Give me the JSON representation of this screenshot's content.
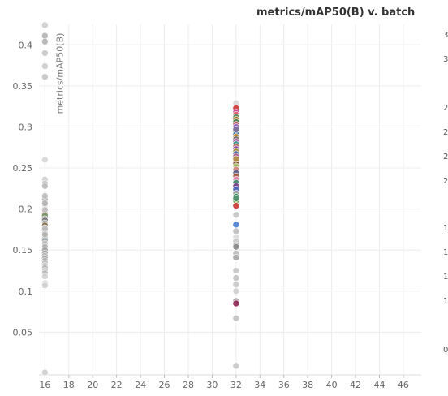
{
  "chart_data": {
    "type": "scatter",
    "title": "metrics/mAP50(B) v. batch",
    "ylabel": "metrics/mAP50(B)",
    "xlabel": "",
    "xlim": [
      15.5,
      47.5
    ],
    "ylim": [
      -0.002,
      0.425
    ],
    "xticks": [
      16,
      18,
      20,
      22,
      24,
      26,
      28,
      30,
      32,
      34,
      36,
      38,
      40,
      42,
      44,
      46
    ],
    "yticks": [
      0.05,
      0.1,
      0.15,
      0.2,
      0.25,
      0.3,
      0.35,
      0.4
    ],
    "ytick_labels": [
      "0.05",
      "0.1",
      "0.15",
      "0.2",
      "0.25",
      "0.3",
      "0.35",
      "0.4"
    ],
    "grid": true,
    "series": [
      {
        "x": [
          16,
          16,
          16,
          16,
          16,
          16,
          16,
          16,
          16,
          16,
          16,
          16,
          16,
          16,
          16,
          16,
          16,
          16,
          16,
          16,
          16,
          16,
          16,
          16,
          16,
          16,
          16,
          16,
          16,
          16,
          16,
          16,
          16,
          16,
          16,
          16,
          16,
          16,
          16,
          16,
          16,
          16,
          16,
          16,
          16,
          16,
          16,
          16
        ],
        "y": [
          0.424,
          0.411,
          0.404,
          0.374,
          0.361,
          0.26,
          0.236,
          0.231,
          0.228,
          0.214,
          0.212,
          0.205,
          0.2,
          0.196,
          0.194,
          0.192,
          0.188,
          0.186,
          0.183,
          0.18,
          0.177,
          0.174,
          0.171,
          0.168,
          0.165,
          0.162,
          0.158,
          0.154,
          0.15,
          0.146,
          0.143,
          0.14,
          0.137,
          0.134,
          0.131,
          0.128,
          0.125,
          0.122,
          0.118,
          0.11,
          0.107,
          0.001,
          0.39,
          0.216,
          0.207,
          0.199,
          0.176,
          0.169
        ],
        "colors": [
          "#cccccc",
          "#b3b3b3",
          "#b3b3b3",
          "#cccccc",
          "#c4c4c4",
          "#d6d6d6",
          "#cfcfcf",
          "#c4c4c4",
          "#bdbdbd",
          "#b3b3b3",
          "#a8a8a8",
          "#c9c9c9",
          "#b3b3b3",
          "#999999",
          "#c84a3f",
          "#6f9e66",
          "#a9a9a9",
          "#6e6e6e",
          "#b0b0b0",
          "#8a6e46",
          "#bdbdbd",
          "#a0a0a0",
          "#b3b3b3",
          "#9b8c5a",
          "#aaaaaa",
          "#9aa6a8",
          "#c2c2c2",
          "#b3b3b3",
          "#a3a3a3",
          "#999999",
          "#b8b8b8",
          "#aaaaaa",
          "#b0b0b0",
          "#bcbcbc",
          "#c6c6c6",
          "#b3b3b3",
          "#c8c8c8",
          "#bdbdbd",
          "#d2d2d2",
          "#dcdcdc",
          "#cfcfcf",
          "#cfcfcf",
          "#c6c6c6",
          "#c0c0c0",
          "#b5b5b5",
          "#c2c2c2",
          "#bcbcbc",
          "#b8b8b8"
        ]
      },
      {
        "x": [
          32,
          32,
          32,
          32,
          32,
          32,
          32,
          32,
          32,
          32,
          32,
          32,
          32,
          32,
          32,
          32,
          32,
          32,
          32,
          32,
          32,
          32,
          32,
          32,
          32,
          32,
          32,
          32,
          32,
          32,
          32,
          32,
          32,
          32,
          32,
          32,
          32,
          32,
          32,
          32,
          32,
          32,
          32,
          32,
          32,
          32,
          32,
          32,
          32,
          32,
          32,
          32,
          32,
          32,
          32,
          32
        ],
        "y": [
          0.329,
          0.323,
          0.318,
          0.315,
          0.312,
          0.309,
          0.306,
          0.303,
          0.3,
          0.297,
          0.294,
          0.291,
          0.288,
          0.285,
          0.282,
          0.279,
          0.276,
          0.273,
          0.27,
          0.267,
          0.264,
          0.261,
          0.258,
          0.255,
          0.252,
          0.248,
          0.244,
          0.24,
          0.236,
          0.232,
          0.228,
          0.224,
          0.219,
          0.215,
          0.21,
          0.204,
          0.193,
          0.181,
          0.173,
          0.166,
          0.161,
          0.156,
          0.154,
          0.146,
          0.141,
          0.125,
          0.116,
          0.108,
          0.1,
          0.088,
          0.085,
          0.067,
          0.009,
          0.297,
          0.261,
          0.213
        ],
        "colors": [
          "#d9d9d9",
          "#cc3333",
          "#c7409b",
          "#e06666",
          "#4a8c62",
          "#b36c2c",
          "#3f7d4f",
          "#c94a5a",
          "#8a6cc7",
          "#7a5a2d",
          "#5d8f4b",
          "#2f6fa3",
          "#d18b2a",
          "#6b6b6b",
          "#a84aa0",
          "#3c9c8c",
          "#c76b6b",
          "#8c4a9e",
          "#9e8c2f",
          "#4a6fb3",
          "#b35c8c",
          "#6c8e3f",
          "#c7942f",
          "#7b4a3a",
          "#a8c76b",
          "#d18080",
          "#5c5c8c",
          "#a35a3a",
          "#e384b3",
          "#3e8c6a",
          "#7a3f8c",
          "#4c63b6",
          "#9a9a9a",
          "#2e8b57",
          "#6b9e3f",
          "#cc3333",
          "#c4c4c4",
          "#4a7fd1",
          "#bcbcbc",
          "#d9d9d9",
          "#c8c8c8",
          "#9a9a9a",
          "#8a8a8a",
          "#bcbcbc",
          "#a6a6a6",
          "#c6c6c6",
          "#c2c2c2",
          "#c8c8c8",
          "#cfcfcf",
          "#a0a0a0",
          "#8b2252",
          "#c2c2c2",
          "#c8c8c8",
          "#7c6a9e",
          "#b08a4a",
          "#4f8f6f"
        ]
      }
    ],
    "right_cut_labels": [
      "3",
      "3",
      "2",
      "2",
      "2",
      "2",
      "1",
      "1",
      "1",
      "1",
      "0"
    ]
  }
}
